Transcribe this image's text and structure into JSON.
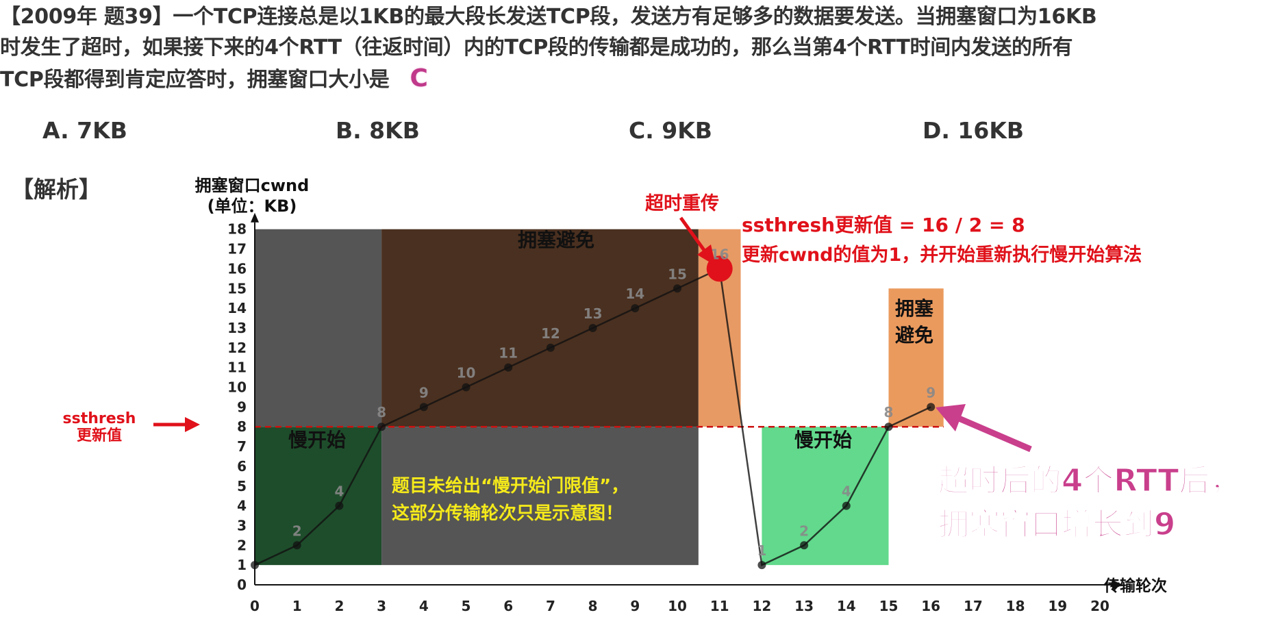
{
  "question": {
    "line1": "【2009年 题39】一个TCP连接总是以1KB的最大段长发送TCP段，发送方有足够多的数据要发送。当拥塞窗口为16KB",
    "line2": "时发生了超时，如果接下来的4个RTT（往返时间）内的TCP段的传输都是成功的，那么当第4个RTT时间内发送的所有",
    "line3": "TCP段都得到肯定应答时，拥塞窗口大小是",
    "answer": "C"
  },
  "options": [
    "A. 7KB",
    "B. 8KB",
    "C. 9KB",
    "D. 16KB"
  ],
  "analysis_label": "【解析】",
  "chart_data": {
    "type": "line",
    "ylabel_line1": "拥塞窗口cwnd",
    "ylabel_line2": "(单位：KB)",
    "xlabel": "传输轮次",
    "xlim": [
      0,
      20
    ],
    "ylim": [
      0,
      18
    ],
    "xticks": [
      0,
      1,
      2,
      3,
      4,
      5,
      6,
      7,
      8,
      9,
      10,
      11,
      12,
      13,
      14,
      15,
      16,
      17,
      18,
      19,
      20
    ],
    "yticks": [
      0,
      1,
      2,
      3,
      4,
      5,
      6,
      7,
      8,
      9,
      10,
      11,
      12,
      13,
      14,
      15,
      16,
      17,
      18
    ],
    "series": [
      {
        "x": [
          0,
          1,
          2,
          3,
          4,
          5,
          6,
          7,
          8,
          9,
          10,
          11,
          12,
          13,
          14,
          15,
          16
        ],
        "y": [
          1,
          2,
          4,
          8,
          9,
          10,
          11,
          12,
          13,
          14,
          15,
          16,
          1,
          2,
          4,
          8,
          9
        ]
      }
    ],
    "point_labels": [
      "",
      "2",
      "4",
      "8",
      "9",
      "10",
      "11",
      "12",
      "13",
      "14",
      "15",
      "16",
      "1",
      "2",
      "4",
      "8",
      "9"
    ],
    "ssthresh_before": 8,
    "ssthresh_after": 8,
    "regions": [
      {
        "label": "慢开始",
        "x": [
          0,
          3
        ],
        "y": [
          1,
          8
        ],
        "color": "#1e4d2b"
      },
      {
        "label": "",
        "x": [
          0,
          3
        ],
        "y": [
          8,
          18
        ],
        "color": "#555555"
      },
      {
        "label": "拥塞避免",
        "x": [
          3,
          10.5
        ],
        "y": [
          8,
          18
        ],
        "color": "#4a3020"
      },
      {
        "label": "",
        "x": [
          3,
          10.5
        ],
        "y": [
          1,
          8
        ],
        "color": "#555555"
      },
      {
        "label": "",
        "x": [
          10.5,
          11.5
        ],
        "y": [
          8,
          18
        ],
        "color": "#e89a64"
      },
      {
        "label": "慢开始",
        "x": [
          12,
          15
        ],
        "y": [
          1,
          8
        ],
        "color": "#62d98c"
      },
      {
        "label": "拥塞避免",
        "x": [
          15,
          16.3
        ],
        "y": [
          8,
          15
        ],
        "color": "#eb9a5e"
      }
    ],
    "annotations": {
      "timeout": "超时重传",
      "ssthresh_update": "ssthresh更新值 = 16 / 2 = 8",
      "cwnd_update": "更新cwnd的值为1，并开始重新执行慢开始算法",
      "ssthresh_left_line1": "ssthresh",
      "ssthresh_left_line2": "更新值",
      "note_line1": "题目未给出“慢开始门限值”，",
      "note_line2": "这部分传输轮次只是示意图！",
      "result_line1": "超时后的4个RTT后，",
      "result_line2": "拥塞窗口增长到9"
    },
    "colors": {
      "line": "#111111",
      "ssthresh": "#cc1111",
      "red": "#e0111a",
      "magenta": "#c93f8c",
      "yellow": "#f5ea1a"
    }
  }
}
